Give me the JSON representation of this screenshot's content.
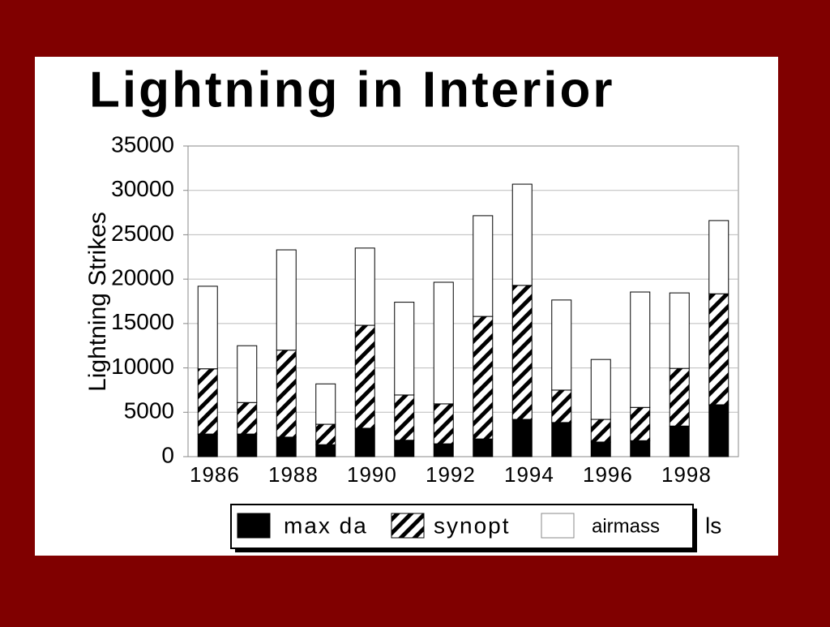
{
  "chart_data": {
    "type": "stacked_bar",
    "title": "Lightning in Interior",
    "y_axis_label": "Lightning Strikes",
    "categories": [
      "1986",
      null,
      "1988",
      null,
      "1990",
      null,
      "1992",
      null,
      "1994",
      null,
      "1996",
      null,
      "1998",
      null
    ],
    "series": [
      {
        "name": "max da",
        "color": "#000000",
        "values": [
          2550,
          2550,
          2200,
          1350,
          3200,
          1850,
          1450,
          2000,
          4200,
          3850,
          1650,
          1800,
          3450,
          5850
        ]
      },
      {
        "name": "synopt",
        "color": "#000000",
        "pattern": "hatch",
        "values": [
          7350,
          3550,
          9800,
          2300,
          11600,
          5100,
          4500,
          13800,
          15100,
          3650,
          2550,
          3750,
          6500,
          12500
        ]
      },
      {
        "name": "airmass",
        "color": "#ffffff",
        "values": [
          9300,
          6400,
          11300,
          4550,
          8700,
          10450,
          13700,
          11350,
          11400,
          10150,
          6750,
          13000,
          8500,
          8250
        ]
      }
    ],
    "legend_trailing_text": "ls",
    "ylim": [
      0,
      35000
    ],
    "yticks": [
      0,
      5000,
      10000,
      15000,
      20000,
      25000,
      30000,
      35000
    ],
    "grid": true
  }
}
